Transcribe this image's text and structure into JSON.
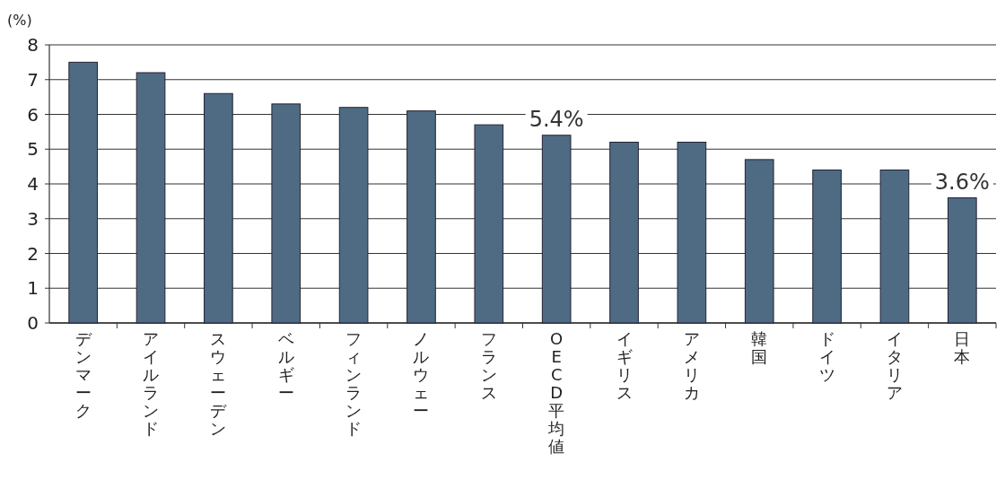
{
  "chart_data": {
    "type": "bar",
    "ylabel": "(%)",
    "categories": [
      "デンマーク",
      "アイルランド",
      "スウェーデン",
      "ベルギー",
      "フィンランド",
      "ノルウェー",
      "フランス",
      "OECD平均値",
      "イギリス",
      "アメリカ",
      "韓国",
      "ドイツ",
      "イタリア",
      "日本"
    ],
    "values": [
      7.5,
      7.2,
      6.6,
      6.3,
      6.2,
      6.1,
      5.7,
      5.4,
      5.2,
      5.2,
      4.7,
      4.4,
      4.4,
      3.6
    ],
    "value_labels": [
      null,
      null,
      null,
      null,
      null,
      null,
      null,
      "5.4%",
      null,
      null,
      null,
      null,
      null,
      "3.6%"
    ],
    "color": "#4f6b84",
    "ylim": [
      0,
      8
    ],
    "yticks": [
      0,
      1,
      2,
      3,
      4,
      5,
      6,
      7,
      8
    ],
    "grid": "y"
  }
}
